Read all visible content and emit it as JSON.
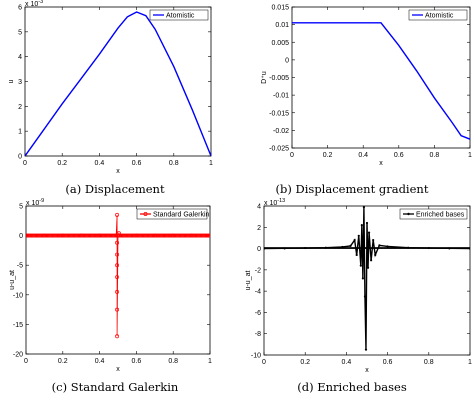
{
  "figure": {
    "captions": [
      "(a) Displacement",
      "(b) Displacement gradient",
      "(c) Standard Galerkin",
      "(d) Enriched bases"
    ]
  },
  "chart_data": [
    {
      "type": "line",
      "title": "",
      "xlabel": "x",
      "ylabel": "u",
      "exponent_label": "x 10",
      "exponent_power": "-3",
      "xlim": [
        0,
        1
      ],
      "ylim": [
        0,
        6
      ],
      "xticks": [
        0,
        0.2,
        0.4,
        0.6,
        0.8,
        1
      ],
      "xtick_labels": [
        "0",
        "0.2",
        "0.4",
        "0.6",
        "0.8",
        "1"
      ],
      "yticks": [
        0,
        1,
        2,
        3,
        4,
        5,
        6
      ],
      "ytick_labels": [
        "0",
        "1",
        "2",
        "3",
        "4",
        "5",
        "6"
      ],
      "legend": "top-right",
      "series": [
        {
          "name": "Atomistic",
          "color": "#0000ff",
          "marker": "none",
          "x": [
            0,
            0.1,
            0.2,
            0.3,
            0.4,
            0.5,
            0.55,
            0.6,
            0.65,
            0.7,
            0.8,
            0.9,
            1.0
          ],
          "y": [
            0,
            1.05,
            2.1,
            3.1,
            4.1,
            5.15,
            5.6,
            5.8,
            5.65,
            5.1,
            3.6,
            1.85,
            0
          ]
        }
      ]
    },
    {
      "type": "line",
      "title": "",
      "xlabel": "x",
      "ylabel": "D⁺u",
      "xlim": [
        0,
        1
      ],
      "ylim": [
        -0.025,
        0.015
      ],
      "xticks": [
        0,
        0.2,
        0.4,
        0.6,
        0.8,
        1
      ],
      "xtick_labels": [
        "0",
        "0.2",
        "0.4",
        "0.6",
        "0.8",
        "1"
      ],
      "yticks": [
        -0.025,
        -0.02,
        -0.015,
        -0.01,
        -0.005,
        0,
        0.005,
        0.01,
        0.015
      ],
      "ytick_labels": [
        "-0.025",
        "-0.02",
        "-0.015",
        "-0.01",
        "-0.005",
        "0",
        "0.005",
        "0.01",
        "0.015"
      ],
      "legend": "top-right",
      "series": [
        {
          "name": "Atomistic",
          "color": "#0000ff",
          "marker": "none",
          "x": [
            0,
            0.5,
            0.6,
            0.7,
            0.8,
            0.9,
            0.95,
            1.0
          ],
          "y": [
            0.0105,
            0.0105,
            0.0041,
            -0.0031,
            -0.0108,
            -0.0178,
            -0.0215,
            -0.0225
          ]
        }
      ]
    },
    {
      "type": "line",
      "title": "",
      "xlabel": "x",
      "ylabel": "u-u_at",
      "exponent_label": "x 10",
      "exponent_power": "-9",
      "xlim": [
        0,
        1
      ],
      "ylim": [
        -20,
        5
      ],
      "xticks": [
        0,
        0.2,
        0.4,
        0.6,
        0.8,
        1
      ],
      "xtick_labels": [
        "0",
        "0.2",
        "0.4",
        "0.6",
        "0.8",
        "1"
      ],
      "yticks": [
        -20,
        -15,
        -10,
        -5,
        0,
        5
      ],
      "ytick_labels": [
        "-20",
        "-15",
        "-10",
        "-5",
        "0",
        "5"
      ],
      "legend": "top-right",
      "series": [
        {
          "name": "Standard Galerkin",
          "color": "#ff0000",
          "marker": "circle",
          "x": [
            0,
            0.1,
            0.2,
            0.3,
            0.4,
            0.49,
            0.495,
            0.495,
            0.495,
            0.495,
            0.495,
            0.495,
            0.495,
            0.495,
            0.5,
            0.505,
            0.51,
            0.6,
            0.7,
            0.8,
            0.9,
            1.0
          ],
          "y": [
            0,
            0,
            0,
            0,
            0,
            0,
            3.5,
            -1.2,
            -3.2,
            -5,
            -7,
            -9.5,
            -12.5,
            -17,
            0,
            0.4,
            0,
            0,
            0,
            0,
            0,
            0
          ]
        }
      ]
    },
    {
      "type": "line",
      "title": "",
      "xlabel": "x",
      "ylabel": "u-u_at",
      "exponent_label": "x 10",
      "exponent_power": "-13",
      "xlim": [
        0,
        1
      ],
      "ylim": [
        -10,
        4
      ],
      "xticks": [
        0,
        0.2,
        0.4,
        0.6,
        0.8,
        1
      ],
      "xtick_labels": [
        "0",
        "0.2",
        "0.4",
        "0.6",
        "0.8",
        "1"
      ],
      "yticks": [
        -10,
        -8,
        -6,
        -4,
        -2,
        0,
        2,
        4
      ],
      "ytick_labels": [
        "-10",
        "-8",
        "-6",
        "-4",
        "-2",
        "0",
        "2",
        "4"
      ],
      "legend": "top-right",
      "series": [
        {
          "name": "Enriched bases",
          "color": "#000000",
          "marker": "dot",
          "x": [
            0,
            0.1,
            0.2,
            0.3,
            0.38,
            0.42,
            0.44,
            0.45,
            0.46,
            0.47,
            0.475,
            0.48,
            0.485,
            0.49,
            0.495,
            0.5,
            0.505,
            0.51,
            0.52,
            0.53,
            0.54,
            0.56,
            0.6,
            0.7,
            0.8,
            0.9,
            1.0
          ],
          "y": [
            0,
            0.02,
            0.05,
            0.08,
            0.15,
            0.25,
            0.8,
            -0.6,
            1.2,
            -1.6,
            2.2,
            -2.8,
            3.9,
            -4.5,
            -9.5,
            2.4,
            -1.8,
            1.5,
            -1.1,
            0.8,
            -0.6,
            0.3,
            0.2,
            0.08,
            0.05,
            0.02,
            0
          ]
        }
      ]
    }
  ]
}
